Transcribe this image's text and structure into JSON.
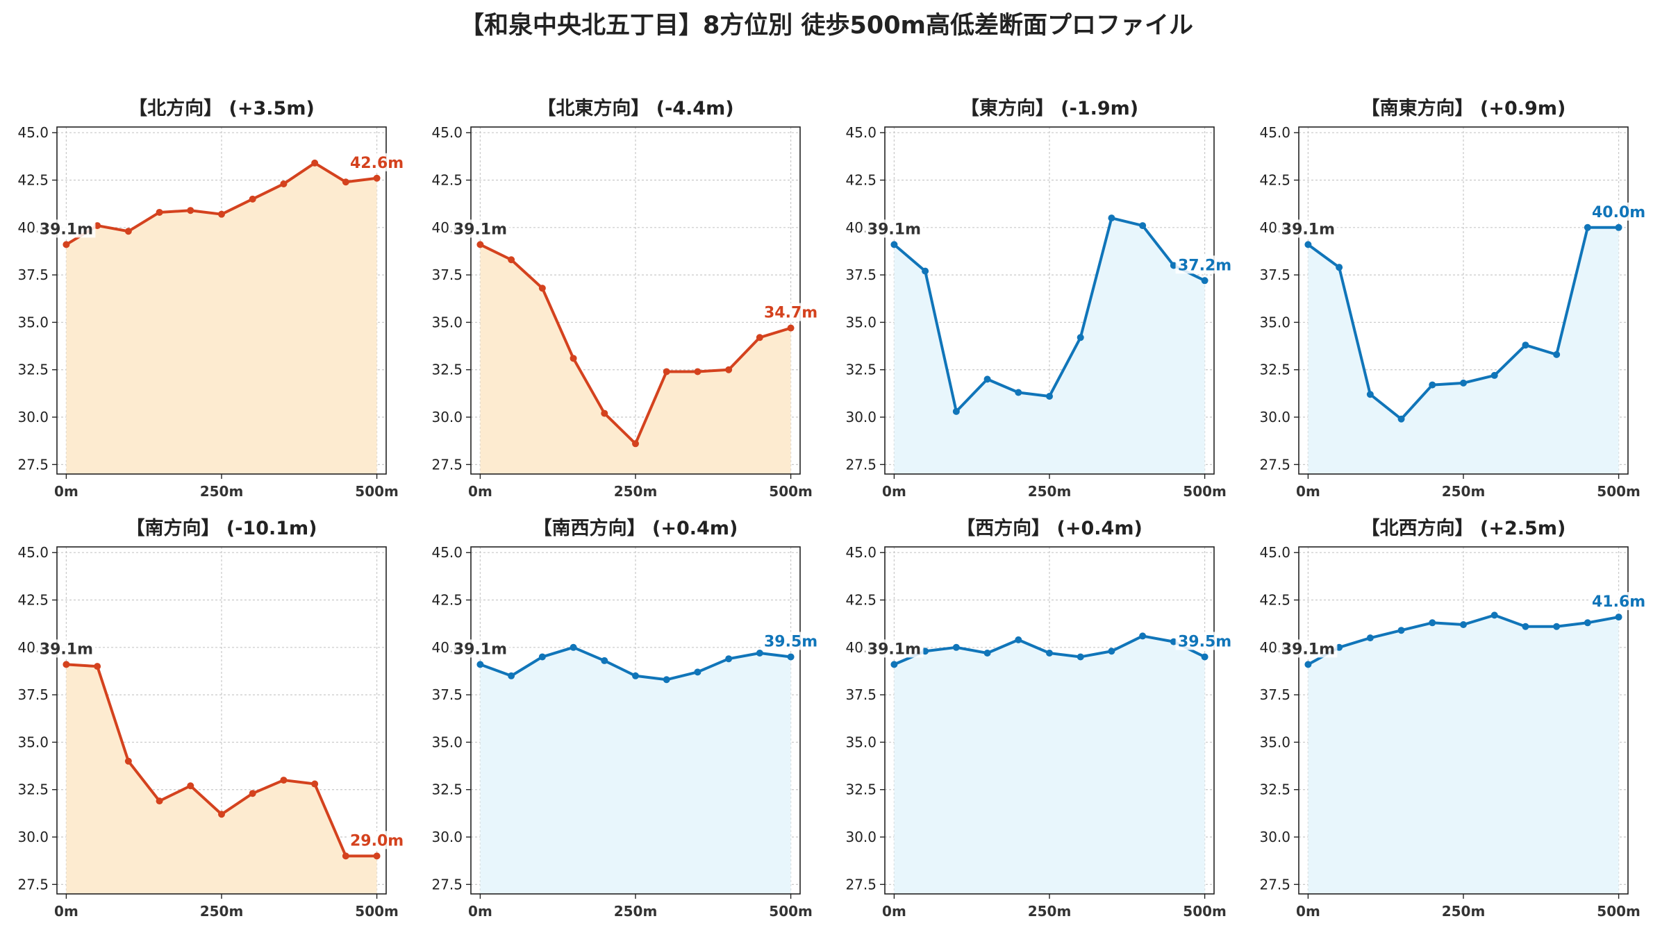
{
  "title": "【和泉中央北五丁目】8方位別 徒歩500m高低差断面プロファイル",
  "colors": {
    "up_line": "#d4421e",
    "up_fill": "#fdebd0",
    "down_line": "#1075b9",
    "down_fill": "#e8f6fc",
    "start_label": "#333333"
  },
  "chart_data": [
    {
      "type": "area",
      "title": "【北方向】 (+3.5m)",
      "color_scheme": "up",
      "x": [
        0,
        50,
        100,
        150,
        200,
        250,
        300,
        350,
        400,
        450,
        500
      ],
      "values": [
        39.1,
        40.1,
        39.8,
        40.8,
        40.9,
        40.7,
        41.5,
        42.3,
        43.4,
        42.4,
        42.6
      ],
      "xticks": [
        "0m",
        "250m",
        "500m"
      ],
      "yticks": [
        "27.5",
        "30.0",
        "32.5",
        "35.0",
        "37.5",
        "40.0",
        "42.5",
        "45.0"
      ],
      "start_label": "39.1m",
      "end_label": "42.6m",
      "ylim": [
        27,
        45.3
      ],
      "grid": true
    },
    {
      "type": "area",
      "title": "【北東方向】 (-4.4m)",
      "color_scheme": "up",
      "x": [
        0,
        50,
        100,
        150,
        200,
        250,
        300,
        350,
        400,
        450,
        500
      ],
      "values": [
        39.1,
        38.3,
        36.8,
        33.1,
        30.2,
        28.6,
        32.4,
        32.4,
        32.5,
        34.2,
        34.7
      ],
      "xticks": [
        "0m",
        "250m",
        "500m"
      ],
      "yticks": [
        "27.5",
        "30.0",
        "32.5",
        "35.0",
        "37.5",
        "40.0",
        "42.5",
        "45.0"
      ],
      "start_label": "39.1m",
      "end_label": "34.7m",
      "ylim": [
        27,
        45.3
      ],
      "grid": true
    },
    {
      "type": "area",
      "title": "【東方向】 (-1.9m)",
      "color_scheme": "down",
      "x": [
        0,
        50,
        100,
        150,
        200,
        250,
        300,
        350,
        400,
        450,
        500
      ],
      "values": [
        39.1,
        37.7,
        30.3,
        32.0,
        31.3,
        31.1,
        34.2,
        40.5,
        40.1,
        38.0,
        37.2
      ],
      "xticks": [
        "0m",
        "250m",
        "500m"
      ],
      "yticks": [
        "27.5",
        "30.0",
        "32.5",
        "35.0",
        "37.5",
        "40.0",
        "42.5",
        "45.0"
      ],
      "start_label": "39.1m",
      "end_label": "37.2m",
      "ylim": [
        27,
        45.3
      ],
      "grid": true
    },
    {
      "type": "area",
      "title": "【南東方向】 (+0.9m)",
      "color_scheme": "down",
      "x": [
        0,
        50,
        100,
        150,
        200,
        250,
        300,
        350,
        400,
        450,
        500
      ],
      "values": [
        39.1,
        37.9,
        31.2,
        29.9,
        31.7,
        31.8,
        32.2,
        33.8,
        33.3,
        40.0,
        40.0
      ],
      "xticks": [
        "0m",
        "250m",
        "500m"
      ],
      "yticks": [
        "27.5",
        "30.0",
        "32.5",
        "35.0",
        "37.5",
        "40.0",
        "42.5",
        "45.0"
      ],
      "start_label": "39.1m",
      "end_label": "40.0m",
      "ylim": [
        27,
        45.3
      ],
      "grid": true
    },
    {
      "type": "area",
      "title": "【南方向】 (-10.1m)",
      "color_scheme": "up",
      "x": [
        0,
        50,
        100,
        150,
        200,
        250,
        300,
        350,
        400,
        450,
        500
      ],
      "values": [
        39.1,
        39.0,
        34.0,
        31.9,
        32.7,
        31.2,
        32.3,
        33.0,
        32.8,
        29.0,
        29.0
      ],
      "xticks": [
        "0m",
        "250m",
        "500m"
      ],
      "yticks": [
        "27.5",
        "30.0",
        "32.5",
        "35.0",
        "37.5",
        "40.0",
        "42.5",
        "45.0"
      ],
      "start_label": "39.1m",
      "end_label": "29.0m",
      "ylim": [
        27,
        45.3
      ],
      "grid": true
    },
    {
      "type": "area",
      "title": "【南西方向】 (+0.4m)",
      "color_scheme": "down",
      "x": [
        0,
        50,
        100,
        150,
        200,
        250,
        300,
        350,
        400,
        450,
        500
      ],
      "values": [
        39.1,
        38.5,
        39.5,
        40.0,
        39.3,
        38.5,
        38.3,
        38.7,
        39.4,
        39.7,
        39.5
      ],
      "xticks": [
        "0m",
        "250m",
        "500m"
      ],
      "yticks": [
        "27.5",
        "30.0",
        "32.5",
        "35.0",
        "37.5",
        "40.0",
        "42.5",
        "45.0"
      ],
      "start_label": "39.1m",
      "end_label": "39.5m",
      "ylim": [
        27,
        45.3
      ],
      "grid": true
    },
    {
      "type": "area",
      "title": "【西方向】 (+0.4m)",
      "color_scheme": "down",
      "x": [
        0,
        50,
        100,
        150,
        200,
        250,
        300,
        350,
        400,
        450,
        500
      ],
      "values": [
        39.1,
        39.8,
        40.0,
        39.7,
        40.4,
        39.7,
        39.5,
        39.8,
        40.6,
        40.3,
        39.5
      ],
      "xticks": [
        "0m",
        "250m",
        "500m"
      ],
      "yticks": [
        "27.5",
        "30.0",
        "32.5",
        "35.0",
        "37.5",
        "40.0",
        "42.5",
        "45.0"
      ],
      "start_label": "39.1m",
      "end_label": "39.5m",
      "ylim": [
        27,
        45.3
      ],
      "grid": true
    },
    {
      "type": "area",
      "title": "【北西方向】 (+2.5m)",
      "color_scheme": "down",
      "x": [
        0,
        50,
        100,
        150,
        200,
        250,
        300,
        350,
        400,
        450,
        500
      ],
      "values": [
        39.1,
        40.0,
        40.5,
        40.9,
        41.3,
        41.2,
        41.7,
        41.1,
        41.1,
        41.3,
        41.6
      ],
      "xticks": [
        "0m",
        "250m",
        "500m"
      ],
      "yticks": [
        "27.5",
        "30.0",
        "32.5",
        "35.0",
        "37.5",
        "40.0",
        "42.5",
        "45.0"
      ],
      "start_label": "39.1m",
      "end_label": "41.6m",
      "ylim": [
        27,
        45.3
      ],
      "grid": true
    }
  ]
}
